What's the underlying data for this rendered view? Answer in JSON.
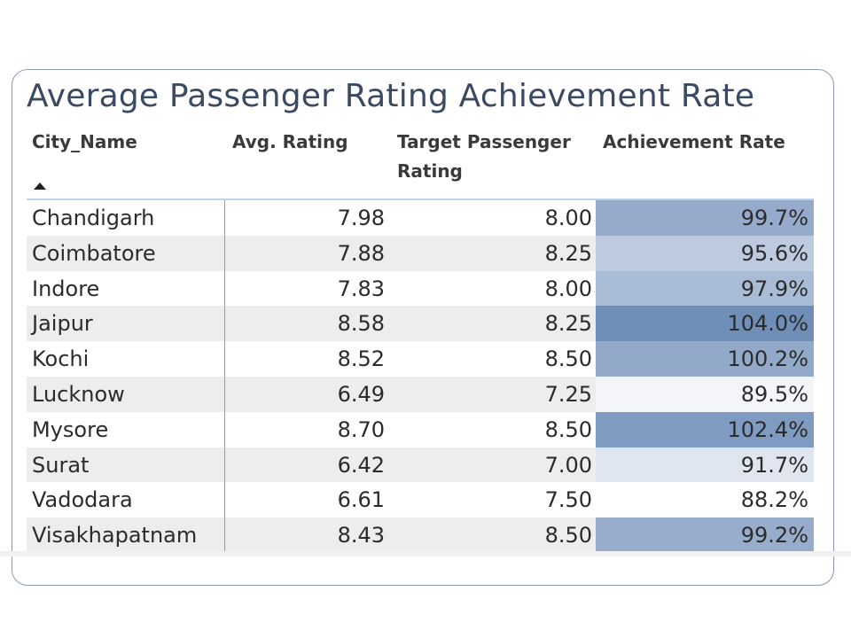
{
  "title": "Average Passenger Rating Achievement Rate",
  "columns": {
    "city": "City_Name",
    "avg": "Avg. Rating",
    "target": "Target Passenger Rating",
    "achievement": "Achievement Rate"
  },
  "sort": {
    "column": "City_Name",
    "direction": "ascending"
  },
  "rows": [
    {
      "city": "Chandigarh",
      "avg": "7.98",
      "target": "8.00",
      "achievement": "99.7%",
      "color": "#96abcb"
    },
    {
      "city": "Coimbatore",
      "avg": "7.88",
      "target": "8.25",
      "achievement": "95.6%",
      "color": "#bccbdf"
    },
    {
      "city": "Indore",
      "avg": "7.83",
      "target": "8.00",
      "achievement": "97.9%",
      "color": "#a9bcd6"
    },
    {
      "city": "Jaipur",
      "avg": "8.58",
      "target": "8.25",
      "achievement": "104.0%",
      "color": "#6f8fb9"
    },
    {
      "city": "Kochi",
      "avg": "8.52",
      "target": "8.50",
      "achievement": "100.2%",
      "color": "#93a9ca"
    },
    {
      "city": "Lucknow",
      "avg": "6.49",
      "target": "7.25",
      "achievement": "89.5%",
      "color": "#f3f5f8"
    },
    {
      "city": "Mysore",
      "avg": "8.70",
      "target": "8.50",
      "achievement": "102.4%",
      "color": "#809bc1"
    },
    {
      "city": "Surat",
      "avg": "6.42",
      "target": "7.00",
      "achievement": "91.7%",
      "color": "#dfe6ef"
    },
    {
      "city": "Vadodara",
      "avg": "6.61",
      "target": "7.50",
      "achievement": "88.2%",
      "color": "#ffffff"
    },
    {
      "city": "Visakhapatnam",
      "avg": "8.43",
      "target": "8.50",
      "achievement": "99.2%",
      "color": "#98adcc"
    }
  ]
}
